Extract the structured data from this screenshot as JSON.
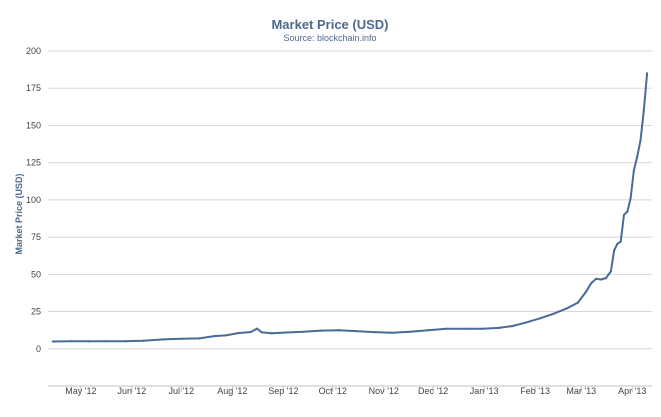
{
  "chart_data": {
    "type": "line",
    "title": "Market Price (USD)",
    "subtitle": "Source: blockchain.info",
    "xlabel": "",
    "ylabel": "Market Price (USD)",
    "ylim": [
      -25,
      200
    ],
    "yticks": [
      0,
      25,
      50,
      75,
      100,
      125,
      150,
      175,
      200
    ],
    "xlim": [
      "2012-04-11",
      "2013-04-13"
    ],
    "xticks": [
      {
        "date": "2012-05-01",
        "label": "May '12"
      },
      {
        "date": "2012-06-01",
        "label": "Jun '12"
      },
      {
        "date": "2012-07-01",
        "label": "Jul '12"
      },
      {
        "date": "2012-08-01",
        "label": "Aug '12"
      },
      {
        "date": "2012-09-01",
        "label": "Sep '12"
      },
      {
        "date": "2012-10-01",
        "label": "Oct '12"
      },
      {
        "date": "2012-11-01",
        "label": "Nov '12"
      },
      {
        "date": "2012-12-01",
        "label": "Dec '12"
      },
      {
        "date": "2013-01-01",
        "label": "Jan '13"
      },
      {
        "date": "2013-02-01",
        "label": "Feb '13"
      },
      {
        "date": "2013-03-01",
        "label": "Mar '13"
      },
      {
        "date": "2013-04-01",
        "label": "Apr '13"
      }
    ],
    "grid": true,
    "legend": "none",
    "series": [
      {
        "color": "#4a6b96",
        "points": [
          [
            "2012-04-14",
            4.9
          ],
          [
            "2012-04-25",
            5.1
          ],
          [
            "2012-05-06",
            5.0
          ],
          [
            "2012-05-16",
            5.1
          ],
          [
            "2012-05-28",
            5.1
          ],
          [
            "2012-06-08",
            5.4
          ],
          [
            "2012-06-20",
            6.3
          ],
          [
            "2012-07-01",
            6.7
          ],
          [
            "2012-07-12",
            7.0
          ],
          [
            "2012-07-21",
            8.5
          ],
          [
            "2012-07-28",
            9.0
          ],
          [
            "2012-08-05",
            10.6
          ],
          [
            "2012-08-12",
            11.2
          ],
          [
            "2012-08-16",
            13.5
          ],
          [
            "2012-08-19",
            11.0
          ],
          [
            "2012-08-25",
            10.4
          ],
          [
            "2012-09-03",
            10.9
          ],
          [
            "2012-09-13",
            11.4
          ],
          [
            "2012-09-24",
            12.2
          ],
          [
            "2012-10-05",
            12.5
          ],
          [
            "2012-10-15",
            11.9
          ],
          [
            "2012-10-26",
            11.2
          ],
          [
            "2012-11-06",
            10.8
          ],
          [
            "2012-11-17",
            11.5
          ],
          [
            "2012-11-28",
            12.5
          ],
          [
            "2012-12-09",
            13.5
          ],
          [
            "2012-12-20",
            13.4
          ],
          [
            "2012-12-31",
            13.5
          ],
          [
            "2013-01-10",
            14.0
          ],
          [
            "2013-01-18",
            15.2
          ],
          [
            "2013-01-26",
            17.5
          ],
          [
            "2013-02-04",
            20.5
          ],
          [
            "2013-02-12",
            23.5
          ],
          [
            "2013-02-20",
            27.0
          ],
          [
            "2013-02-27",
            31.0
          ],
          [
            "2013-03-04",
            38.5
          ],
          [
            "2013-03-07",
            44.0
          ],
          [
            "2013-03-10",
            47.0
          ],
          [
            "2013-03-13",
            46.5
          ],
          [
            "2013-03-16",
            47.5
          ],
          [
            "2013-03-19",
            52.0
          ],
          [
            "2013-03-21",
            66.0
          ],
          [
            "2013-03-23",
            70.5
          ],
          [
            "2013-03-25",
            72.0
          ],
          [
            "2013-03-27",
            90.0
          ],
          [
            "2013-03-29",
            92.0
          ],
          [
            "2013-03-31",
            101.0
          ],
          [
            "2013-04-02",
            120.0
          ],
          [
            "2013-04-04",
            129.0
          ],
          [
            "2013-04-06",
            140.0
          ],
          [
            "2013-04-08",
            160.0
          ],
          [
            "2013-04-10",
            185.0
          ]
        ]
      }
    ]
  }
}
